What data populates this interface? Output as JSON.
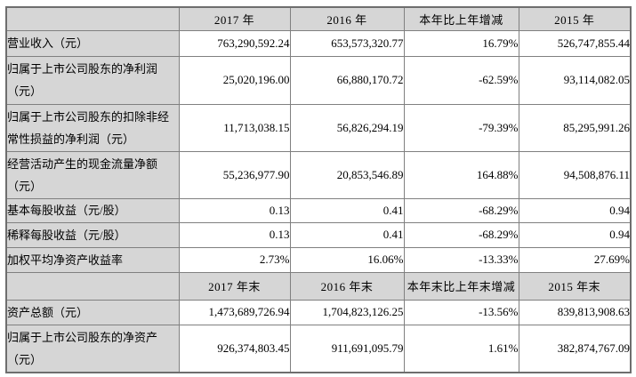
{
  "colors": {
    "page_background": "#ffffff",
    "header_cell_background": "#d6d6d6",
    "label_cell_background": "#d6d6d6",
    "data_cell_background": "#ffffff",
    "border": "#808080",
    "outer_border": "#6e6e6e",
    "text": "#000000"
  },
  "table": {
    "annual_header": [
      "",
      "2017 年",
      "2016 年",
      "本年比上年增减",
      "2015 年"
    ],
    "annual_rows": [
      {
        "label": "营业收入（元）",
        "y2017": "763,290,592.24",
        "y2016": "653,573,320.77",
        "change": "16.79%",
        "y2015": "526,747,855.44"
      },
      {
        "label": "归属于上市公司股东的净利润（元）",
        "y2017": "25,020,196.00",
        "y2016": "66,880,170.72",
        "change": "-62.59%",
        "y2015": "93,114,082.05"
      },
      {
        "label": "归属于上市公司股东的扣除非经常性损益的净利润（元）",
        "y2017": "11,713,038.15",
        "y2016": "56,826,294.19",
        "change": "-79.39%",
        "y2015": "85,295,991.26"
      },
      {
        "label": "经营活动产生的现金流量净额（元）",
        "y2017": "55,236,977.90",
        "y2016": "20,853,546.89",
        "change": "164.88%",
        "y2015": "94,508,876.11"
      },
      {
        "label": "基本每股收益（元/股）",
        "y2017": "0.13",
        "y2016": "0.41",
        "change": "-68.29%",
        "y2015": "0.94"
      },
      {
        "label": "稀释每股收益（元/股）",
        "y2017": "0.13",
        "y2016": "0.41",
        "change": "-68.29%",
        "y2015": "0.94"
      },
      {
        "label": "加权平均净资产收益率",
        "y2017": "2.73%",
        "y2016": "16.06%",
        "change": "-13.33%",
        "y2015": "27.69%"
      }
    ],
    "eoy_header": [
      "",
      "2017 年末",
      "2016 年末",
      "本年末比上年末增减",
      "2015 年末"
    ],
    "eoy_rows": [
      {
        "label": "资产总额（元）",
        "y2017": "1,473,689,726.94",
        "y2016": "1,704,823,126.25",
        "change": "-13.56%",
        "y2015": "839,813,908.63"
      },
      {
        "label": "归属于上市公司股东的净资产（元）",
        "y2017": "926,374,803.45",
        "y2016": "911,691,095.79",
        "change": "1.61%",
        "y2015": "382,874,767.09"
      }
    ]
  }
}
